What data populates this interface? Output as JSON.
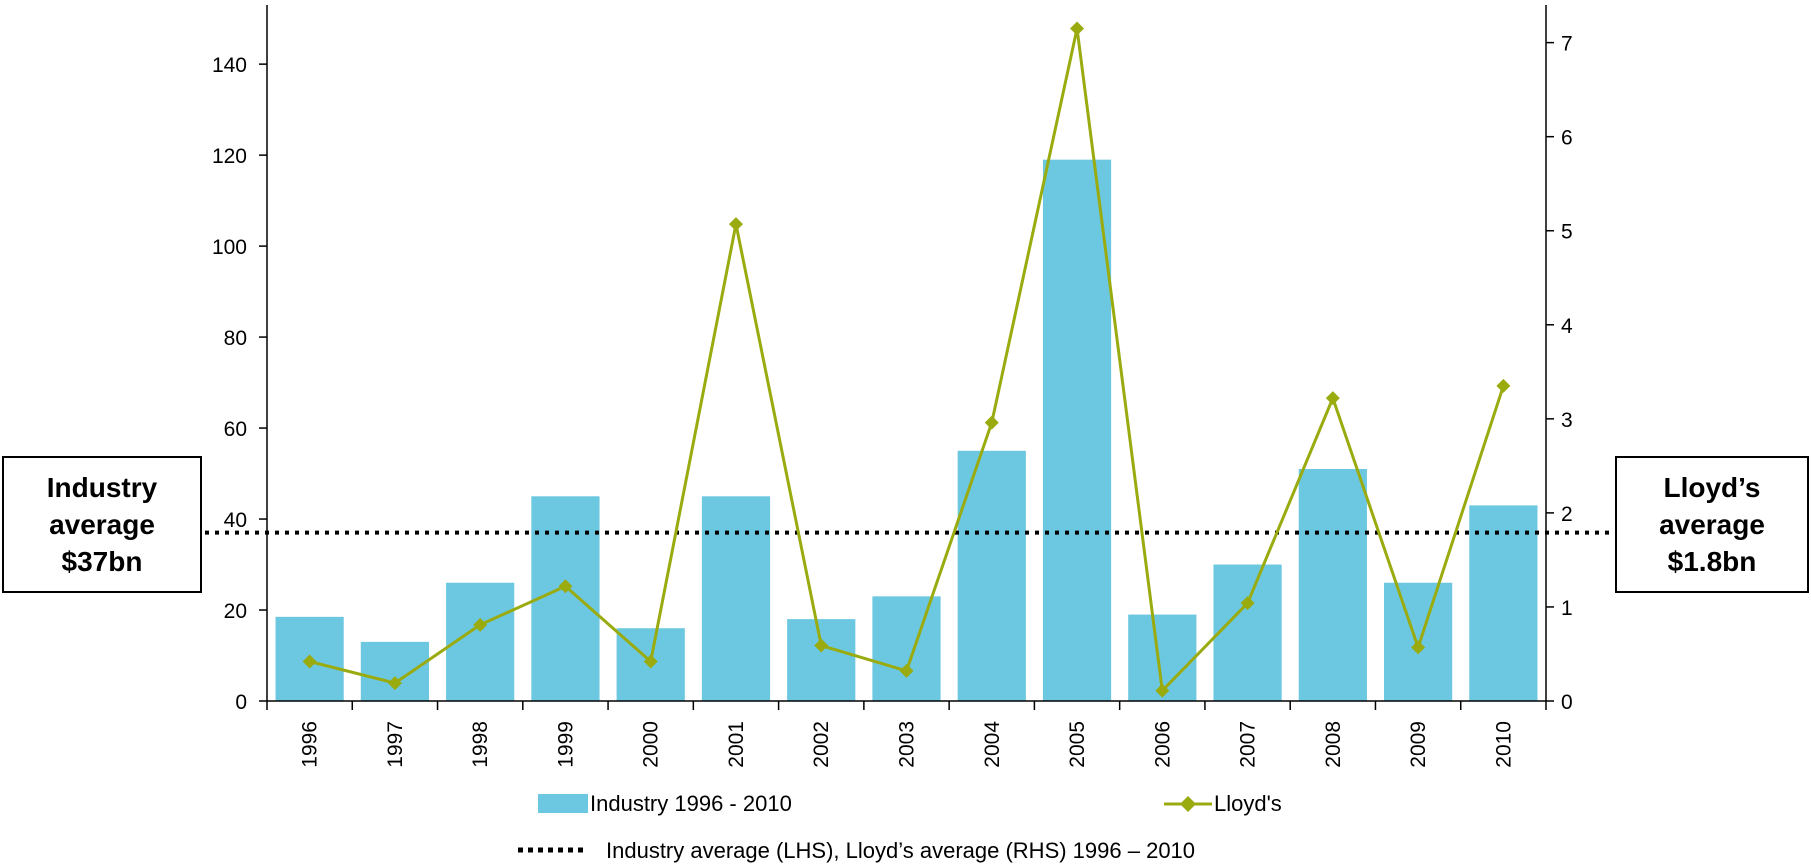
{
  "chart_data": {
    "type": "bar",
    "categories": [
      "1996",
      "1997",
      "1998",
      "1999",
      "2000",
      "2001",
      "2002",
      "2003",
      "2004",
      "2005",
      "2006",
      "2007",
      "2008",
      "2009",
      "2010"
    ],
    "series": [
      {
        "name": "Industry 1996 - 2010",
        "type": "bar",
        "axis": "left",
        "color": "#6CC8E0",
        "values": [
          18.5,
          13,
          26,
          45,
          16,
          45,
          18,
          23,
          55,
          119,
          19,
          30,
          51,
          26,
          43
        ]
      },
      {
        "name": "Lloyd's",
        "type": "line",
        "axis": "right",
        "color": "#9AAB10",
        "marker": "diamond",
        "values": [
          0.42,
          0.19,
          0.81,
          1.22,
          0.42,
          5.07,
          0.59,
          0.32,
          2.96,
          7.15,
          0.11,
          1.04,
          3.22,
          0.57,
          3.35
        ]
      }
    ],
    "reference_line": {
      "label": "Industry average (LHS),  Lloyd’s average (RHS) 1996 – 2010",
      "left_value": 37,
      "right_value": 1.8,
      "style": "dotted"
    },
    "left_axis": {
      "ylim": [
        0,
        153
      ],
      "ticks": [
        0,
        20,
        40,
        60,
        80,
        100,
        120,
        140
      ]
    },
    "right_axis": {
      "ylim": [
        0,
        7.4
      ],
      "ticks": [
        0,
        1,
        2,
        3,
        4,
        5,
        6,
        7
      ]
    },
    "grid": false,
    "legend_placement": "bottom"
  },
  "annotations": {
    "left_box": [
      "Industry",
      "average",
      "$37bn"
    ],
    "right_box": [
      "Lloyd’s",
      "average",
      "$1.8bn"
    ]
  }
}
